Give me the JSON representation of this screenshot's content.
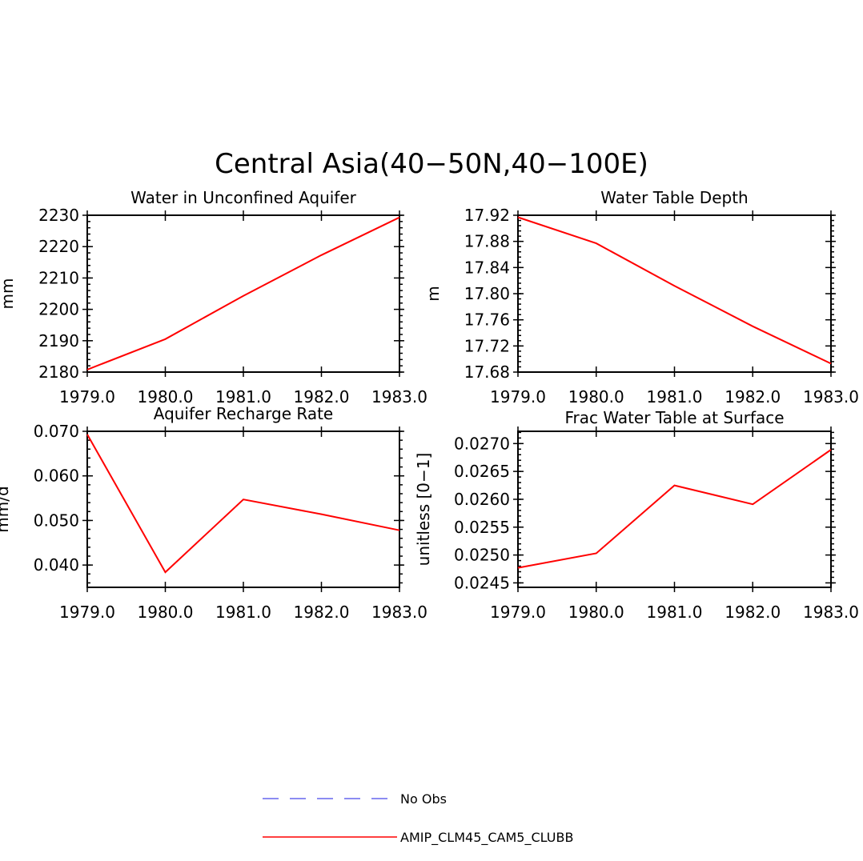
{
  "figure": {
    "title": "Central Asia(40−50N,40−100E)"
  },
  "legend": {
    "entries": [
      {
        "label": "No Obs",
        "color": "#6666ee",
        "style": "dashed"
      },
      {
        "label": "AMIP_CLM45_CAM5_CLUBB",
        "color": "#ff0000",
        "style": "solid"
      }
    ]
  },
  "chart_data": [
    {
      "type": "line",
      "title": "Water in Unconfined Aquifer",
      "xlabel": "",
      "ylabel": "mm",
      "x": [
        1979,
        1980,
        1981,
        1982,
        1983
      ],
      "xticks": [
        "1979.0",
        "1980.0",
        "1981.0",
        "1982.0",
        "1983.0"
      ],
      "xlim": [
        1979,
        1983
      ],
      "ylim": [
        2180,
        2230
      ],
      "yticks": [
        2180,
        2190,
        2200,
        2210,
        2220,
        2230
      ],
      "ytick_labels": [
        "2180",
        "2190",
        "2200",
        "2210",
        "2220",
        "2230"
      ],
      "series": [
        {
          "name": "AMIP_CLM45_CAM5_CLUBB",
          "color": "#ff0000",
          "values": [
            2180.8,
            2190.5,
            2204.3,
            2217.3,
            2229.3
          ]
        }
      ]
    },
    {
      "type": "line",
      "title": "Water Table Depth",
      "xlabel": "",
      "ylabel": "m",
      "x": [
        1979,
        1980,
        1981,
        1982,
        1983
      ],
      "xticks": [
        "1979.0",
        "1980.0",
        "1981.0",
        "1982.0",
        "1983.0"
      ],
      "xlim": [
        1979,
        1983
      ],
      "ylim": [
        17.68,
        17.92
      ],
      "yticks": [
        17.68,
        17.72,
        17.76,
        17.8,
        17.84,
        17.88,
        17.92
      ],
      "ytick_labels": [
        "17.68",
        "17.72",
        "17.76",
        "17.80",
        "17.84",
        "17.88",
        "17.92"
      ],
      "series": [
        {
          "name": "AMIP_CLM45_CAM5_CLUBB",
          "color": "#ff0000",
          "values": [
            17.917,
            17.877,
            17.812,
            17.75,
            17.693
          ]
        }
      ]
    },
    {
      "type": "line",
      "title": "Aquifer Recharge Rate",
      "xlabel": "",
      "ylabel": "mm/d",
      "x": [
        1979,
        1980,
        1981,
        1982,
        1983
      ],
      "xticks": [
        "1979.0",
        "1980.0",
        "1981.0",
        "1982.0",
        "1983.0"
      ],
      "xlim": [
        1979,
        1983
      ],
      "ylim": [
        0.035,
        0.07
      ],
      "yticks": [
        0.04,
        0.05,
        0.06,
        0.07
      ],
      "ytick_labels": [
        "0.040",
        "0.050",
        "0.060",
        "0.070"
      ],
      "series": [
        {
          "name": "AMIP_CLM45_CAM5_CLUBB",
          "color": "#ff0000",
          "values": [
            0.0693,
            0.0384,
            0.0547,
            0.0514,
            0.0478
          ]
        }
      ]
    },
    {
      "type": "line",
      "title": "Frac Water Table at Surface",
      "xlabel": "",
      "ylabel": "unitless [0−1]",
      "x": [
        1979,
        1980,
        1981,
        1982,
        1983
      ],
      "xticks": [
        "1979.0",
        "1980.0",
        "1981.0",
        "1982.0",
        "1983.0"
      ],
      "xlim": [
        1979,
        1983
      ],
      "ylim": [
        0.02442,
        0.02722
      ],
      "yticks": [
        0.0245,
        0.025,
        0.0255,
        0.026,
        0.0265,
        0.027
      ],
      "ytick_labels": [
        "0.0245",
        "0.0250",
        "0.0255",
        "0.0260",
        "0.0265",
        "0.0270"
      ],
      "series": [
        {
          "name": "AMIP_CLM45_CAM5_CLUBB",
          "color": "#ff0000",
          "values": [
            0.02477,
            0.02503,
            0.02625,
            0.02591,
            0.02689
          ]
        }
      ]
    }
  ]
}
